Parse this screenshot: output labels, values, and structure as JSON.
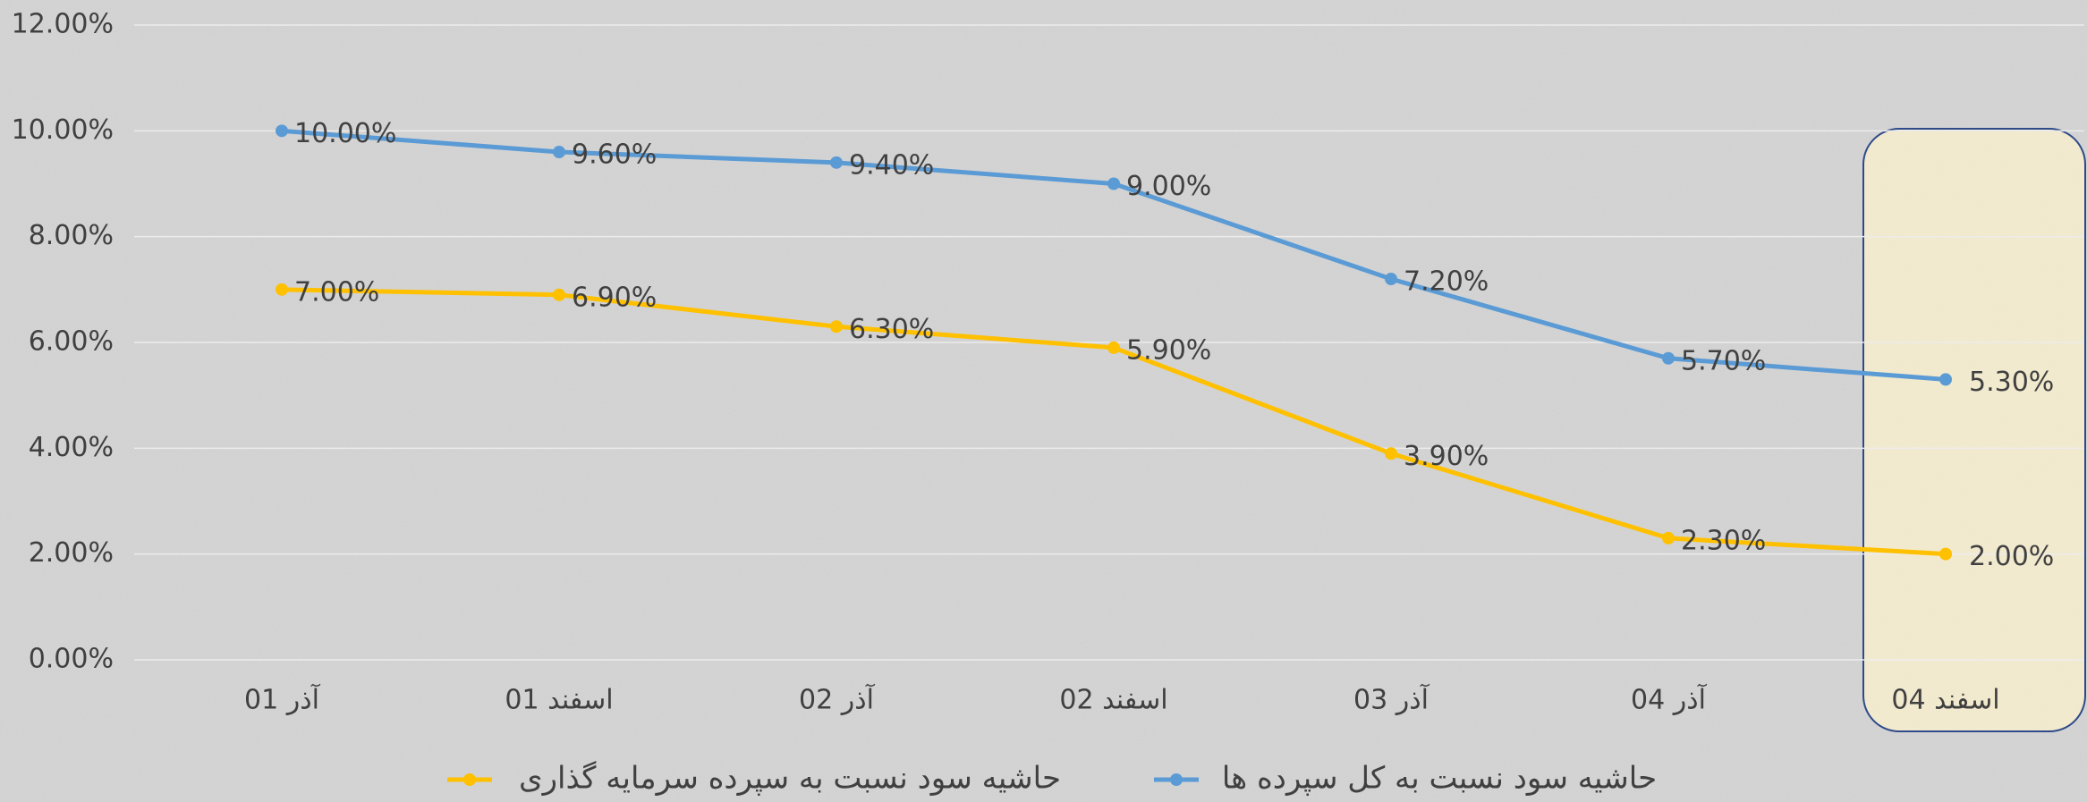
{
  "chart_data": {
    "type": "line",
    "categories": [
      "آذر 01",
      "اسفند 01",
      "آذر 02",
      "اسفند 02",
      "آذر 03",
      "آذر 04",
      "اسفند 04"
    ],
    "series": [
      {
        "name": "حاشیه سود نسبت به سپرده سرمایه گذاری",
        "color": "#ffc000",
        "values": [
          7.0,
          6.9,
          6.3,
          5.9,
          3.9,
          2.3,
          2.0
        ],
        "value_labels": [
          "7.00%",
          "6.90%",
          "6.30%",
          "5.90%",
          "3.90%",
          "2.30%",
          "2.00%"
        ]
      },
      {
        "name": "حاشیه سود نسبت به کل سپرده ها",
        "color": "#5b9bd5",
        "values": [
          10.0,
          9.6,
          9.4,
          9.0,
          7.2,
          5.7,
          5.3
        ],
        "value_labels": [
          "10.00%",
          "9.60%",
          "9.40%",
          "9.00%",
          "7.20%",
          "5.70%",
          "5.30%"
        ]
      }
    ],
    "ylim": [
      0,
      12
    ],
    "yticks": [
      {
        "value": 0,
        "label": "0.00%"
      },
      {
        "value": 2,
        "label": "2.00%"
      },
      {
        "value": 4,
        "label": "4.00%"
      },
      {
        "value": 6,
        "label": "6.00%"
      },
      {
        "value": 8,
        "label": "8.00%"
      },
      {
        "value": 10,
        "label": "10.00%"
      },
      {
        "value": 12,
        "label": "12.00%"
      }
    ],
    "grid": true,
    "legend": "bottom"
  }
}
